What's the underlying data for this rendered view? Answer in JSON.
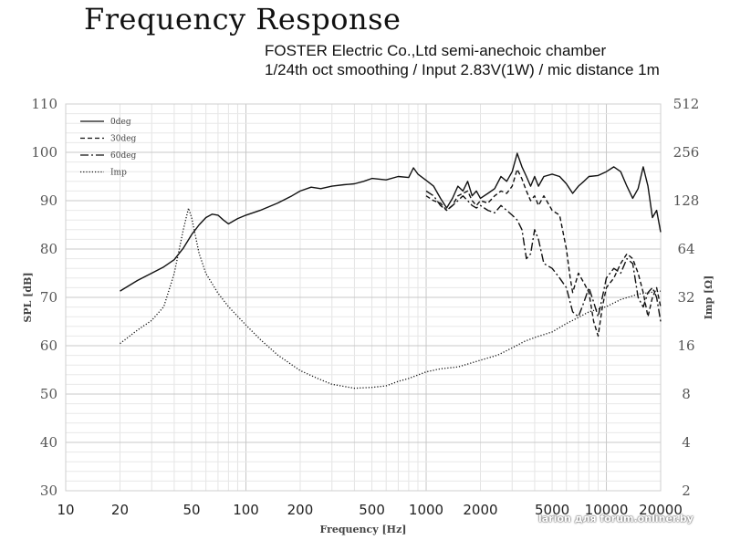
{
  "header": {
    "title": "Frequency Response",
    "subtitle_line1": "FOSTER Electric Co.,Ltd  semi-anechoic chamber",
    "subtitle_line2": "1/24th oct smoothing / Input 2.83V(1W) / mic distance 1m"
  },
  "watermark": "larion для forum.onliner.by",
  "chart_data": {
    "type": "line",
    "title": "Frequency Response",
    "xlabel": "Frequency [Hz]",
    "ylabel": "SPL [dB]",
    "y2label": "Imp [Ω]",
    "xscale": "log",
    "xlim": [
      10,
      20000
    ],
    "ylim": [
      30,
      110
    ],
    "y2lim": [
      2,
      512
    ],
    "y2scale": "log2",
    "grid": true,
    "legend_position": "top-left",
    "xticks": [
      10,
      20,
      50,
      100,
      200,
      500,
      1000,
      2000,
      5000,
      10000,
      20000
    ],
    "xtick_labels": [
      "10",
      "20",
      "50",
      "100",
      "200",
      "500",
      "1000",
      "2000",
      "5000",
      "10000",
      "20000"
    ],
    "yticks": [
      30,
      40,
      50,
      60,
      70,
      80,
      90,
      100,
      110
    ],
    "ytick_labels": [
      "30",
      "40",
      "50",
      "60",
      "70",
      "80",
      "90",
      "100",
      "110"
    ],
    "y2ticks": [
      2,
      4,
      8,
      16,
      32,
      64,
      128,
      256,
      512
    ],
    "y2tick_labels": [
      "2",
      "4",
      "8",
      "16",
      "32",
      "64",
      "128",
      "256",
      "512"
    ],
    "series": [
      {
        "name": "0deg",
        "style": "solid",
        "axis": "left",
        "points": [
          [
            20,
            71.3
          ],
          [
            25,
            73.5
          ],
          [
            30,
            75
          ],
          [
            35,
            76.3
          ],
          [
            40,
            77.8
          ],
          [
            45,
            80.2
          ],
          [
            50,
            83
          ],
          [
            55,
            85
          ],
          [
            60,
            86.5
          ],
          [
            65,
            87.2
          ],
          [
            70,
            87
          ],
          [
            75,
            86
          ],
          [
            80,
            85.2
          ],
          [
            90,
            86.3
          ],
          [
            100,
            87
          ],
          [
            120,
            88
          ],
          [
            150,
            89.5
          ],
          [
            180,
            91
          ],
          [
            200,
            92
          ],
          [
            230,
            92.8
          ],
          [
            260,
            92.5
          ],
          [
            300,
            93
          ],
          [
            350,
            93.3
          ],
          [
            400,
            93.5
          ],
          [
            450,
            94
          ],
          [
            500,
            94.6
          ],
          [
            600,
            94.3
          ],
          [
            700,
            95
          ],
          [
            800,
            94.8
          ],
          [
            850,
            96.8
          ],
          [
            900,
            95.5
          ],
          [
            1000,
            94.2
          ],
          [
            1100,
            93
          ],
          [
            1200,
            90.5
          ],
          [
            1300,
            88.5
          ],
          [
            1400,
            90.5
          ],
          [
            1500,
            93
          ],
          [
            1600,
            92
          ],
          [
            1700,
            94
          ],
          [
            1800,
            91
          ],
          [
            1900,
            92
          ],
          [
            2000,
            90.5
          ],
          [
            2200,
            91.5
          ],
          [
            2400,
            92.5
          ],
          [
            2600,
            95
          ],
          [
            2800,
            94
          ],
          [
            3000,
            96
          ],
          [
            3200,
            99.8
          ],
          [
            3400,
            97
          ],
          [
            3600,
            95
          ],
          [
            3800,
            93
          ],
          [
            4000,
            95
          ],
          [
            4200,
            93
          ],
          [
            4500,
            95
          ],
          [
            5000,
            95.5
          ],
          [
            5500,
            95
          ],
          [
            6000,
            93.5
          ],
          [
            6500,
            91.5
          ],
          [
            7000,
            93
          ],
          [
            7500,
            94
          ],
          [
            8000,
            95
          ],
          [
            9000,
            95.2
          ],
          [
            10000,
            96
          ],
          [
            11000,
            97
          ],
          [
            12000,
            96
          ],
          [
            13000,
            93
          ],
          [
            14000,
            90.5
          ],
          [
            15000,
            92.5
          ],
          [
            16000,
            97
          ],
          [
            17000,
            93
          ],
          [
            18000,
            86.5
          ],
          [
            19000,
            88
          ],
          [
            20000,
            83.5
          ]
        ]
      },
      {
        "name": "30deg",
        "style": "dashed",
        "axis": "left",
        "points": [
          [
            1000,
            91
          ],
          [
            1100,
            90
          ],
          [
            1200,
            89.5
          ],
          [
            1300,
            88
          ],
          [
            1400,
            89
          ],
          [
            1500,
            91
          ],
          [
            1600,
            91.5
          ],
          [
            1700,
            92
          ],
          [
            1800,
            90
          ],
          [
            1900,
            89
          ],
          [
            2000,
            90
          ],
          [
            2200,
            89.5
          ],
          [
            2400,
            91
          ],
          [
            2600,
            92
          ],
          [
            2800,
            91.5
          ],
          [
            3000,
            93
          ],
          [
            3200,
            96.5
          ],
          [
            3400,
            94.5
          ],
          [
            3600,
            92
          ],
          [
            3800,
            90
          ],
          [
            4000,
            91
          ],
          [
            4200,
            89
          ],
          [
            4500,
            91
          ],
          [
            5000,
            88
          ],
          [
            5500,
            87
          ],
          [
            6000,
            80
          ],
          [
            6300,
            74
          ],
          [
            6500,
            71
          ],
          [
            7000,
            75
          ],
          [
            7500,
            73
          ],
          [
            8000,
            71
          ],
          [
            8500,
            65
          ],
          [
            9000,
            62
          ],
          [
            9500,
            68
          ],
          [
            10000,
            72
          ],
          [
            11000,
            74
          ],
          [
            12000,
            77
          ],
          [
            13000,
            79
          ],
          [
            14000,
            78
          ],
          [
            15000,
            75
          ],
          [
            16000,
            71
          ],
          [
            17000,
            66
          ],
          [
            18000,
            70
          ],
          [
            19000,
            72
          ],
          [
            20000,
            68
          ]
        ]
      },
      {
        "name": "60deg",
        "style": "dashdot",
        "axis": "left",
        "points": [
          [
            1000,
            92
          ],
          [
            1100,
            91
          ],
          [
            1200,
            89
          ],
          [
            1300,
            88
          ],
          [
            1400,
            89
          ],
          [
            1500,
            90
          ],
          [
            1600,
            91
          ],
          [
            1700,
            90
          ],
          [
            1800,
            89
          ],
          [
            1900,
            88.5
          ],
          [
            2000,
            89
          ],
          [
            2200,
            88
          ],
          [
            2400,
            87.5
          ],
          [
            2600,
            89
          ],
          [
            2800,
            88
          ],
          [
            3000,
            87
          ],
          [
            3200,
            86
          ],
          [
            3400,
            84
          ],
          [
            3600,
            78
          ],
          [
            3800,
            79
          ],
          [
            4000,
            84
          ],
          [
            4200,
            82
          ],
          [
            4500,
            77
          ],
          [
            5000,
            76
          ],
          [
            5500,
            74
          ],
          [
            6000,
            72
          ],
          [
            6500,
            67
          ],
          [
            7000,
            66
          ],
          [
            7500,
            69
          ],
          [
            8000,
            72
          ],
          [
            8500,
            69
          ],
          [
            9000,
            66
          ],
          [
            9500,
            70
          ],
          [
            10000,
            74
          ],
          [
            11000,
            76
          ],
          [
            12000,
            75
          ],
          [
            13000,
            78
          ],
          [
            14000,
            77
          ],
          [
            15000,
            70
          ],
          [
            16000,
            68
          ],
          [
            17000,
            71
          ],
          [
            18000,
            72
          ],
          [
            19000,
            70
          ],
          [
            20000,
            65
          ]
        ]
      },
      {
        "name": "Imp",
        "style": "dotted",
        "axis": "right",
        "points": [
          [
            20,
            16.5
          ],
          [
            25,
            20
          ],
          [
            30,
            23
          ],
          [
            35,
            28
          ],
          [
            40,
            45
          ],
          [
            45,
            85
          ],
          [
            48,
            115
          ],
          [
            50,
            100
          ],
          [
            55,
            60
          ],
          [
            60,
            45
          ],
          [
            70,
            34
          ],
          [
            80,
            28
          ],
          [
            100,
            21.5
          ],
          [
            120,
            17.5
          ],
          [
            150,
            14
          ],
          [
            200,
            11.2
          ],
          [
            250,
            10
          ],
          [
            300,
            9.2
          ],
          [
            400,
            8.7
          ],
          [
            500,
            8.8
          ],
          [
            600,
            9
          ],
          [
            700,
            9.6
          ],
          [
            800,
            10
          ],
          [
            1000,
            11
          ],
          [
            1200,
            11.5
          ],
          [
            1500,
            11.8
          ],
          [
            2000,
            13
          ],
          [
            2500,
            14
          ],
          [
            3000,
            15.5
          ],
          [
            3500,
            17
          ],
          [
            4000,
            18
          ],
          [
            5000,
            19.5
          ],
          [
            6000,
            22
          ],
          [
            7000,
            24
          ],
          [
            8000,
            26
          ],
          [
            10000,
            28
          ],
          [
            12000,
            31
          ],
          [
            15000,
            33.5
          ],
          [
            20000,
            35
          ]
        ]
      }
    ]
  }
}
